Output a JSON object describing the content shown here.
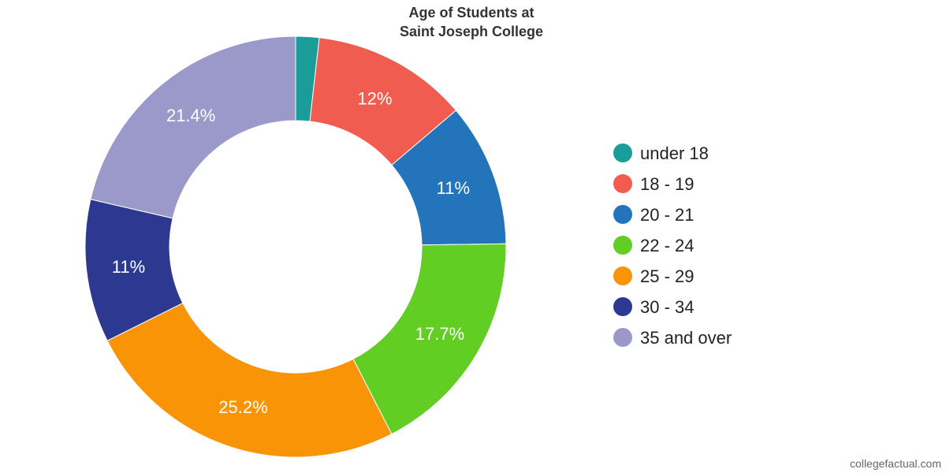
{
  "chart_data": {
    "type": "pie",
    "donut": true,
    "title_lines": [
      "Age of Students at",
      "Saint Joseph College"
    ],
    "categories": [
      "under 18",
      "18 - 19",
      "20 - 21",
      "22 - 24",
      "25 - 29",
      "30 - 34",
      "35 and over"
    ],
    "values": [
      1.8,
      12,
      11,
      17.7,
      25.2,
      11,
      21.4
    ],
    "labels": [
      "",
      "12%",
      "11%",
      "17.7%",
      "25.2%",
      "11%",
      "21.4%"
    ],
    "colors": [
      "#1a9c99",
      "#f05c4f",
      "#2374ba",
      "#62cd22",
      "#f89406",
      "#2d3990",
      "#9b99ca"
    ],
    "legend_position": "right",
    "start_angle": "top",
    "direction": "clockwise"
  },
  "watermark": "collegefactual.com"
}
